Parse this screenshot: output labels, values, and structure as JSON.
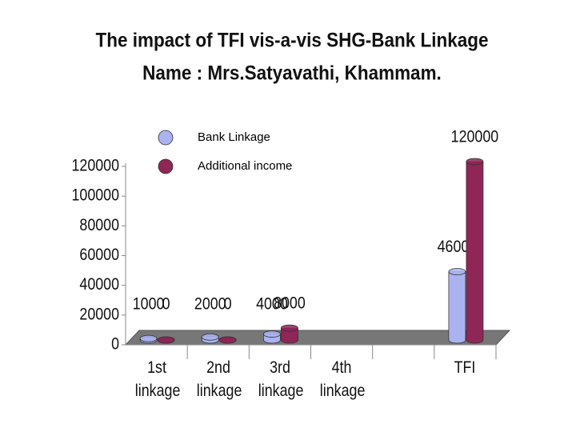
{
  "chart_data": {
    "type": "bar3d",
    "title": "The impact of TFI vis-a-vis SHG-Bank Linkage",
    "subtitle": "Name : Mrs.Satyavathi, Khammam.",
    "categories": [
      "1st linkage",
      "2nd linkage",
      "3rd linkage",
      "4th linkage",
      null,
      "TFI"
    ],
    "series": [
      {
        "name": "Bank Linkage",
        "color": "#aab3f0",
        "values": [
          1000,
          2000,
          4000,
          null,
          null,
          46000
        ]
      },
      {
        "name": "Additional income",
        "color": "#8e2656",
        "values": [
          0,
          0,
          8000,
          null,
          null,
          120000
        ]
      }
    ],
    "ylim": [
      0,
      120000
    ],
    "yticks": [
      0,
      20000,
      40000,
      60000,
      80000,
      100000,
      120000
    ],
    "legend": "top-left"
  }
}
